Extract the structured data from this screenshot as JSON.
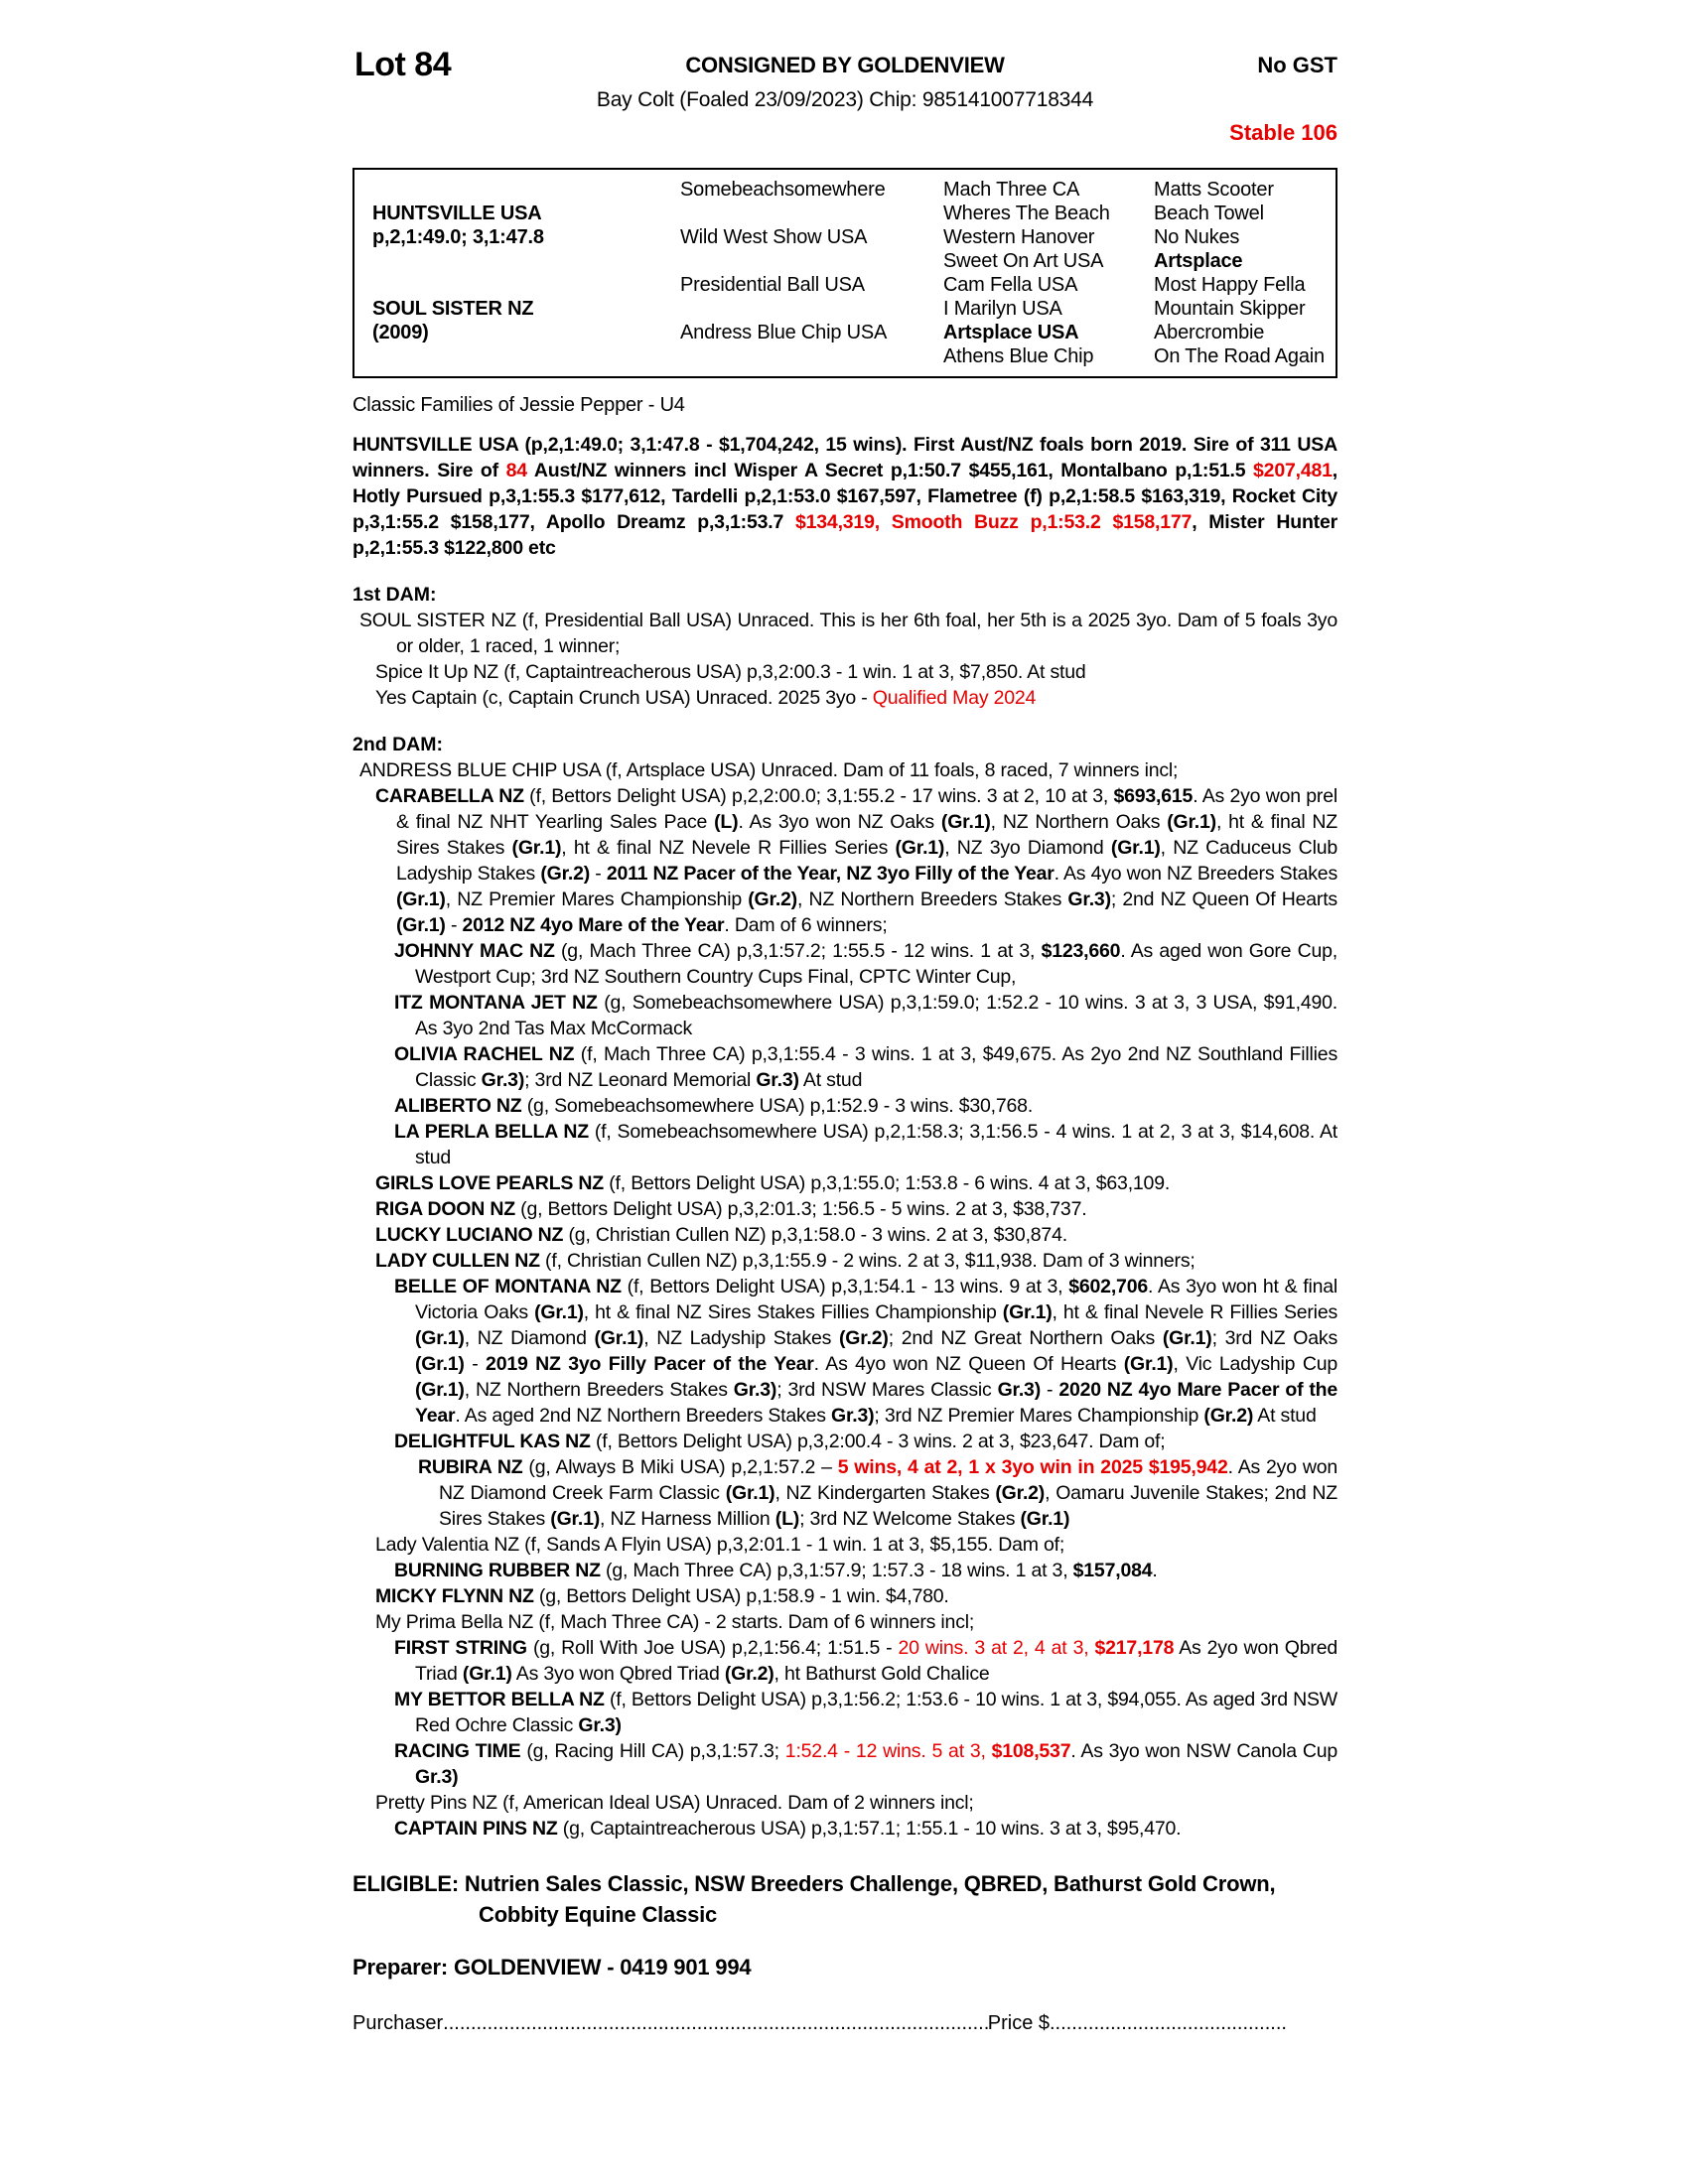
{
  "colors": {
    "accent_red": "#e60000",
    "text": "#000000",
    "page_bg": "#ffffff"
  },
  "header": {
    "lot": "Lot 84",
    "consigned_by": "CONSIGNED BY GOLDENVIEW",
    "gst": "No GST",
    "description": "Bay Colt (Foaled 23/09/2023) Chip: 985141007718344",
    "stable": "Stable 106"
  },
  "pedigree": {
    "sire_name": "HUNTSVILLE USA",
    "sire_record": "p,2,1:49.0; 3,1:47.8",
    "dam_name": "SOUL SISTER NZ",
    "dam_year": "(2009)",
    "gen2": [
      "Somebeachsomewhere",
      "Wild West Show USA",
      "Presidential Ball USA",
      "Andress Blue Chip USA"
    ],
    "gen3": [
      [
        {
          "t": "Mach Three CA"
        }
      ],
      [
        {
          "t": "Wheres The Beach"
        }
      ],
      [
        {
          "t": "Western Hanover"
        }
      ],
      [
        {
          "t": "Sweet On Art USA"
        }
      ],
      [
        {
          "t": "Cam Fella USA"
        }
      ],
      [
        {
          "t": "I Marilyn USA"
        }
      ],
      [
        {
          "t": "Artsplace USA",
          "b": true
        }
      ],
      [
        {
          "t": "Athens Blue Chip"
        }
      ]
    ],
    "gen4": [
      [
        {
          "t": "Matts Scooter"
        }
      ],
      [
        {
          "t": "Beach Towel"
        }
      ],
      [
        {
          "t": "No Nukes"
        }
      ],
      [
        {
          "t": "Artsplace",
          "b": true
        }
      ],
      [
        {
          "t": "Most Happy Fella"
        }
      ],
      [
        {
          "t": "Mountain Skipper"
        }
      ],
      [
        {
          "t": "Abercrombie"
        }
      ],
      [
        {
          "t": "On The Road Again"
        }
      ]
    ]
  },
  "family_line": "Classic Families of Jessie Pepper - U4",
  "sire_paragraph": {
    "runs": [
      {
        "t": "HUNTSVILLE USA (p,2,1:49.0; 3,1:47.8 - $1,704,242, 15 wins). First Aust/NZ foals born 2019. Sire of 311 USA winners. Sire of ",
        "b": true
      },
      {
        "t": "84",
        "b": true,
        "r": true
      },
      {
        "t": " Aust/NZ winners incl Wisper A Secret p,1:50.7 $455,161, Montalbano p,1:51.5 ",
        "b": true
      },
      {
        "t": "$207,481",
        "b": true,
        "r": true
      },
      {
        "t": ", Hotly Pursued p,3,1:55.3 $177,612, Tardelli p,2,1:53.0 $167,597, Flametree (f) p,2,1:58.5 $163,319, Rocket City p,3,1:55.2 $158,177, Apollo Dreamz p,3,1:53.7 ",
        "b": true
      },
      {
        "t": "$134,319, Smooth Buzz p,1:53.2 $158,177",
        "b": true,
        "r": true
      },
      {
        "t": ", Mister Hunter p,2,1:55.3 $122,800 etc",
        "b": true
      }
    ]
  },
  "dam1": {
    "label": "1st DAM:",
    "items": [
      {
        "runs": [
          {
            "t": "SOUL SISTER NZ (f, Presidential Ball USA) Unraced. This is her 6th foal, her 5th is a 2025 3yo. Dam of 5 foals 3yo or older, 1 raced, 1 winner;"
          }
        ]
      },
      {
        "runs": [
          {
            "t": "Spice It Up NZ (f, Captaintreacherous USA) p,3,2:00.3 - 1 win. 1 at 3, $7,850. At stud"
          }
        ]
      },
      {
        "runs": [
          {
            "t": "Yes Captain (c, Captain Crunch USA) Unraced. 2025 3yo - "
          },
          {
            "t": "Qualified May 2024",
            "r": true
          }
        ]
      }
    ]
  },
  "dam2": {
    "label": "2nd DAM:",
    "items": [
      {
        "runs": [
          {
            "t": "ANDRESS BLUE CHIP USA (f, Artsplace USA) Unraced. Dam of 11 foals, 8 raced, 7 winners incl;"
          }
        ]
      },
      {
        "runs": [
          {
            "t": "CARABELLA NZ",
            "b": true
          },
          {
            "t": " (f, Bettors Delight USA) p,2,2:00.0; 3,1:55.2 - 17 wins. 3 at 2, 10 at 3, "
          },
          {
            "t": "$693,615",
            "b": true
          },
          {
            "t": ". As 2yo won prel & final NZ NHT Yearling Sales Pace "
          },
          {
            "t": "(L)",
            "b": true
          },
          {
            "t": ". As 3yo won NZ Oaks "
          },
          {
            "t": "(Gr.1)",
            "b": true
          },
          {
            "t": ", NZ Northern Oaks "
          },
          {
            "t": "(Gr.1)",
            "b": true
          },
          {
            "t": ", ht & final NZ Sires Stakes "
          },
          {
            "t": "(Gr.1)",
            "b": true
          },
          {
            "t": ", ht & final NZ Nevele R Fillies Series "
          },
          {
            "t": "(Gr.1)",
            "b": true
          },
          {
            "t": ", NZ 3yo Diamond "
          },
          {
            "t": "(Gr.1)",
            "b": true
          },
          {
            "t": ", NZ Caduceus Club Ladyship Stakes "
          },
          {
            "t": "(Gr.2)",
            "b": true
          },
          {
            "t": " - "
          },
          {
            "t": "2011 NZ Pacer of the Year, NZ 3yo Filly of the Year",
            "b": true
          },
          {
            "t": ". As 4yo won NZ Breeders Stakes "
          },
          {
            "t": "(Gr.1)",
            "b": true
          },
          {
            "t": ", NZ Premier Mares Championship "
          },
          {
            "t": "(Gr.2)",
            "b": true
          },
          {
            "t": ", NZ Northern Breeders Stakes "
          },
          {
            "t": "Gr.3)",
            "b": true
          },
          {
            "t": "; 2nd NZ Queen Of Hearts "
          },
          {
            "t": "(Gr.1)",
            "b": true
          },
          {
            "t": " - "
          },
          {
            "t": "2012 NZ 4yo Mare of the Year",
            "b": true
          },
          {
            "t": ". Dam of 6 winners;"
          }
        ]
      },
      {
        "runs": [
          {
            "t": "JOHNNY MAC NZ",
            "b": true
          },
          {
            "t": " (g, Mach Three CA) p,3,1:57.2; 1:55.5 - 12 wins. 1 at 3, "
          },
          {
            "t": "$123,660",
            "b": true
          },
          {
            "t": ". As aged won Gore Cup, Westport Cup; 3rd NZ Southern Country Cups Final, CPTC Winter Cup,"
          }
        ]
      },
      {
        "runs": [
          {
            "t": "ITZ MONTANA JET NZ",
            "b": true
          },
          {
            "t": " (g, Somebeachsomewhere USA) p,3,1:59.0; 1:52.2 - 10 wins. 3 at 3, 3 USA, $91,490. As 3yo 2nd Tas Max McCormack"
          }
        ]
      },
      {
        "runs": [
          {
            "t": "OLIVIA RACHEL NZ",
            "b": true
          },
          {
            "t": " (f, Mach Three CA) p,3,1:55.4 - 3 wins. 1 at 3, $49,675. As 2yo 2nd NZ Southland Fillies Classic "
          },
          {
            "t": "Gr.3)",
            "b": true
          },
          {
            "t": "; 3rd NZ Leonard Memorial "
          },
          {
            "t": "Gr.3)",
            "b": true
          },
          {
            "t": " At stud"
          }
        ]
      },
      {
        "runs": [
          {
            "t": "ALIBERTO NZ",
            "b": true
          },
          {
            "t": " (g, Somebeachsomewhere USA) p,1:52.9 - 3 wins. $30,768."
          }
        ]
      },
      {
        "runs": [
          {
            "t": "LA PERLA BELLA NZ",
            "b": true
          },
          {
            "t": " (f, Somebeachsomewhere USA) p,2,1:58.3; 3,1:56.5 - 4 wins. 1 at 2, 3 at 3, $14,608. At stud"
          }
        ]
      },
      {
        "runs": [
          {
            "t": "GIRLS LOVE PEARLS NZ",
            "b": true
          },
          {
            "t": " (f, Bettors Delight USA) p,3,1:55.0; 1:53.8 - 6 wins. 4 at 3, $63,109."
          }
        ]
      },
      {
        "runs": [
          {
            "t": "RIGA DOON NZ",
            "b": true
          },
          {
            "t": " (g, Bettors Delight USA) p,3,2:01.3; 1:56.5 - 5 wins. 2 at 3, $38,737."
          }
        ]
      },
      {
        "runs": [
          {
            "t": "LUCKY LUCIANO NZ",
            "b": true
          },
          {
            "t": " (g, Christian Cullen NZ) p,3,1:58.0 - 3 wins. 2 at 3, $30,874."
          }
        ]
      },
      {
        "runs": [
          {
            "t": "LADY CULLEN NZ",
            "b": true
          },
          {
            "t": " (f, Christian Cullen NZ) p,3,1:55.9 - 2 wins. 2 at 3, $11,938. Dam of 3 winners;"
          }
        ]
      },
      {
        "runs": [
          {
            "t": "BELLE OF MONTANA NZ",
            "b": true
          },
          {
            "t": " (f, Bettors Delight USA) p,3,1:54.1 - 13 wins. 9 at 3, "
          },
          {
            "t": "$602,706",
            "b": true
          },
          {
            "t": ". As 3yo won ht & final Victoria Oaks "
          },
          {
            "t": "(Gr.1)",
            "b": true
          },
          {
            "t": ", ht & final NZ Sires Stakes Fillies Championship "
          },
          {
            "t": "(Gr.1)",
            "b": true
          },
          {
            "t": ", ht & final Nevele R Fillies Series "
          },
          {
            "t": "(Gr.1)",
            "b": true
          },
          {
            "t": ", NZ Diamond "
          },
          {
            "t": "(Gr.1)",
            "b": true
          },
          {
            "t": ", NZ Ladyship Stakes "
          },
          {
            "t": "(Gr.2)",
            "b": true
          },
          {
            "t": "; 2nd NZ Great Northern Oaks "
          },
          {
            "t": "(Gr.1)",
            "b": true
          },
          {
            "t": "; 3rd NZ Oaks "
          },
          {
            "t": "(Gr.1)",
            "b": true
          },
          {
            "t": " - "
          },
          {
            "t": "2019 NZ 3yo Filly Pacer of the Year",
            "b": true
          },
          {
            "t": ". As 4yo won NZ Queen Of Hearts "
          },
          {
            "t": "(Gr.1)",
            "b": true
          },
          {
            "t": ", Vic Ladyship Cup "
          },
          {
            "t": "(Gr.1)",
            "b": true
          },
          {
            "t": ", NZ Northern Breeders Stakes "
          },
          {
            "t": "Gr.3)",
            "b": true
          },
          {
            "t": "; 3rd NSW Mares Classic "
          },
          {
            "t": "Gr.3)",
            "b": true
          },
          {
            "t": " - "
          },
          {
            "t": "2020 NZ 4yo Mare Pacer of the Year",
            "b": true
          },
          {
            "t": ". As aged 2nd NZ Northern Breeders Stakes "
          },
          {
            "t": "Gr.3)",
            "b": true
          },
          {
            "t": "; 3rd NZ Premier Mares Championship "
          },
          {
            "t": "(Gr.2)",
            "b": true
          },
          {
            "t": " At stud"
          }
        ]
      },
      {
        "runs": [
          {
            "t": "DELIGHTFUL KAS NZ",
            "b": true
          },
          {
            "t": " (f, Bettors Delight USA) p,3,2:00.4 - 3 wins. 2 at 3, $23,647. Dam of;"
          }
        ]
      },
      {
        "runs": [
          {
            "t": "RUBIRA NZ",
            "b": true
          },
          {
            "t": " (g, Always B Miki USA) p,2,1:57.2 – "
          },
          {
            "t": "5 wins, 4 at 2, 1 x 3yo win in 2025 $195,942",
            "b": true,
            "r": true
          },
          {
            "t": ". As 2yo won NZ Diamond Creek Farm Classic "
          },
          {
            "t": "(Gr.1)",
            "b": true
          },
          {
            "t": ", NZ Kindergarten Stakes "
          },
          {
            "t": "(Gr.2)",
            "b": true
          },
          {
            "t": ", Oamaru Juvenile Stakes; 2nd NZ Sires Stakes "
          },
          {
            "t": "(Gr.1)",
            "b": true
          },
          {
            "t": ", NZ Harness Million "
          },
          {
            "t": "(L)",
            "b": true
          },
          {
            "t": "; 3rd NZ Welcome Stakes "
          },
          {
            "t": "(Gr.1)",
            "b": true
          }
        ]
      },
      {
        "runs": [
          {
            "t": "Lady Valentia NZ (f, Sands A Flyin USA) p,3,2:01.1 - 1 win. 1 at 3, $5,155. Dam of;"
          }
        ]
      },
      {
        "runs": [
          {
            "t": "BURNING RUBBER NZ",
            "b": true
          },
          {
            "t": " (g, Mach Three CA) p,3,1:57.9; 1:57.3 - 18 wins. 1 at 3, "
          },
          {
            "t": "$157,084",
            "b": true
          },
          {
            "t": "."
          }
        ]
      },
      {
        "runs": [
          {
            "t": "MICKY FLYNN NZ",
            "b": true
          },
          {
            "t": " (g, Bettors Delight USA) p,1:58.9 - 1 win. $4,780."
          }
        ]
      },
      {
        "runs": [
          {
            "t": "My Prima Bella NZ (f, Mach Three CA) - 2 starts. Dam of 6 winners incl;"
          }
        ]
      },
      {
        "runs": [
          {
            "t": "FIRST STRING",
            "b": true
          },
          {
            "t": " (g, Roll With Joe USA) p,2,1:56.4; 1:51.5 - "
          },
          {
            "t": "20 wins. 3 at 2, 4 at 3, ",
            "r": true
          },
          {
            "t": "$217,178",
            "b": true,
            "r": true
          },
          {
            "t": " As 2yo won Qbred Triad "
          },
          {
            "t": "(Gr.1)",
            "b": true
          },
          {
            "t": " As 3yo won Qbred Triad "
          },
          {
            "t": "(Gr.2)",
            "b": true
          },
          {
            "t": ", ht Bathurst Gold Chalice"
          }
        ]
      },
      {
        "runs": [
          {
            "t": "MY BETTOR BELLA NZ",
            "b": true
          },
          {
            "t": " (f, Bettors Delight USA) p,3,1:56.2; 1:53.6 - 10 wins. 1 at 3, $94,055. As aged 3rd NSW Red Ochre Classic "
          },
          {
            "t": "Gr.3)",
            "b": true
          }
        ]
      },
      {
        "runs": [
          {
            "t": "RACING TIME",
            "b": true
          },
          {
            "t": " (g, Racing Hill CA) p,3,1:57.3; "
          },
          {
            "t": "1:52.4 - 12 wins. 5 at 3, ",
            "r": true
          },
          {
            "t": "$108,537",
            "b": true,
            "r": true
          },
          {
            "t": ". As 3yo won NSW Canola Cup "
          },
          {
            "t": "Gr.3)",
            "b": true
          }
        ]
      },
      {
        "runs": [
          {
            "t": "Pretty Pins NZ (f, American Ideal USA) Unraced. Dam of 2 winners incl;"
          }
        ]
      },
      {
        "runs": [
          {
            "t": "CAPTAIN PINS NZ",
            "b": true
          },
          {
            "t": " (g, Captaintreacherous USA) p,3,1:57.1; 1:55.1 - 10 wins. 3 at 3, $95,470."
          }
        ]
      }
    ]
  },
  "eligible": {
    "runs": [
      {
        "t": "ELIGIBLE: Nutrien Sales Classic, NSW Breeders Challenge, QBRED, Bathurst Gold Crown, Cobbity Equine Classic",
        "b": true
      }
    ]
  },
  "preparer": "Preparer: GOLDENVIEW - 0419 901 994",
  "footer": {
    "purchaser_label": "Purchaser",
    "purchaser_dots": "........................................................................................................................",
    "price_label": "Price $",
    "price_dots": "............................................................"
  }
}
